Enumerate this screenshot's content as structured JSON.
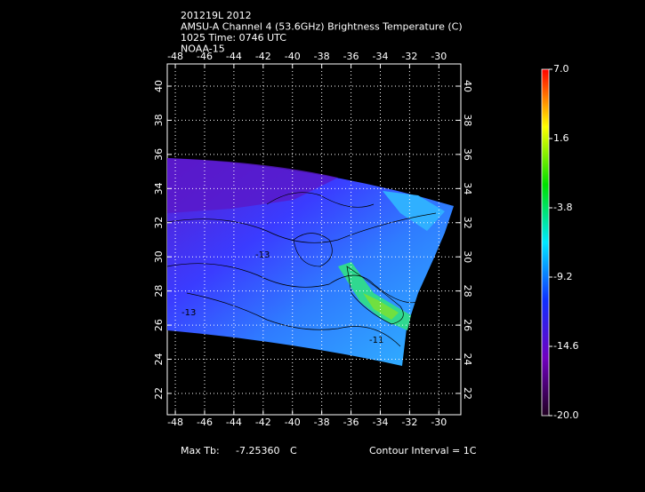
{
  "chart_data": {
    "type": "map",
    "title_lines": [
      "201219L 2012",
      "AMSU-A Channel 4 (53.6GHz) Brightness Temperature (C)",
      "1025 Time: 0746 UTC",
      "NOAA-15"
    ],
    "xlim": [
      -48.55,
      -28.5
    ],
    "ylim": [
      20.75,
      41.3
    ],
    "xticks": [
      -48,
      -46,
      -44,
      -42,
      -40,
      -38,
      -36,
      -34,
      -32,
      -30
    ],
    "yticks": [
      22,
      24,
      26,
      28,
      30,
      32,
      34,
      36,
      38,
      40
    ],
    "grid": true,
    "colorbar_lim": [
      -20,
      7
    ],
    "colorbar_ticks": [
      {
        "value": 7,
        "label": "7.0"
      },
      {
        "value": 1.6,
        "label": "1.6"
      },
      {
        "value": -3.8,
        "label": "-3.8"
      },
      {
        "value": -9.2,
        "label": "-9.2"
      },
      {
        "value": -14.6,
        "label": "-14.6"
      },
      {
        "value": -20,
        "label": "-20.0"
      }
    ],
    "colorbar_colors": [
      "#ff0000",
      "#ffff00",
      "#00e000",
      "#00e8ff",
      "#1030ff",
      "#7000c0",
      "#200020"
    ],
    "contour_labels": [
      "-13",
      "-13",
      "-11"
    ],
    "max_label": "Max Tb:",
    "max_value": "-7.25360",
    "max_unit": "C",
    "contour_interval": "Contour Interval = 1C"
  }
}
